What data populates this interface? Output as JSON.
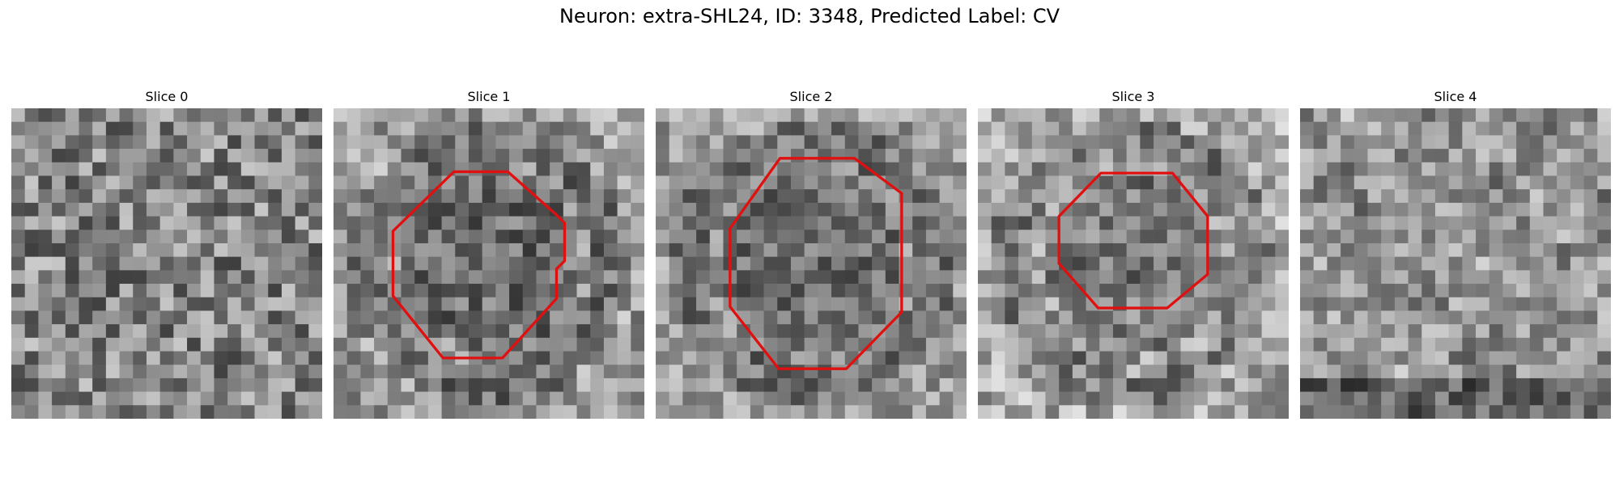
{
  "figure": {
    "title": "Neuron: extra-SHL24, ID: 3348, Predicted Label: CV"
  },
  "colors": {
    "contour": "#e01010",
    "background": "#ffffff"
  },
  "panels": [
    {
      "title": "Slice 0",
      "pattern": "noise",
      "seed": 11,
      "brightness": 0.52,
      "contrast": 0.55,
      "contour": null
    },
    {
      "title": "Slice 1",
      "pattern": "ring-dark",
      "seed": 23,
      "brightness": 0.55,
      "contrast": 0.45,
      "contour": [
        [
          4.4,
          9.1
        ],
        [
          8.9,
          4.7
        ],
        [
          12.9,
          4.7
        ],
        [
          16.5,
          7.9
        ],
        [
          17.1,
          8.5
        ],
        [
          17.1,
          11.3
        ],
        [
          16.5,
          11.9
        ],
        [
          16.5,
          14.1
        ],
        [
          12.5,
          18.5
        ],
        [
          8.1,
          18.5
        ],
        [
          4.4,
          13.9
        ]
      ]
    },
    {
      "title": "Slice 2",
      "pattern": "ring-dark",
      "seed": 37,
      "brightness": 0.55,
      "contrast": 0.4,
      "contour": [
        [
          5.5,
          8.9
        ],
        [
          9.2,
          3.7
        ],
        [
          14.7,
          3.7
        ],
        [
          18.2,
          6.3
        ],
        [
          18.2,
          15.1
        ],
        [
          14.1,
          19.3
        ],
        [
          9.1,
          19.3
        ],
        [
          5.5,
          14.7
        ]
      ]
    },
    {
      "title": "Slice 3",
      "pattern": "ring-dark",
      "seed": 41,
      "brightness": 0.6,
      "contrast": 0.45,
      "contour": [
        [
          6.0,
          8.0
        ],
        [
          9.1,
          4.8
        ],
        [
          14.4,
          4.8
        ],
        [
          17.0,
          8.0
        ],
        [
          17.0,
          12.3
        ],
        [
          14.0,
          14.8
        ],
        [
          8.9,
          14.8
        ],
        [
          6.0,
          11.5
        ]
      ]
    },
    {
      "title": "Slice 4",
      "pattern": "soft",
      "seed": 53,
      "brightness": 0.58,
      "contrast": 0.42,
      "contour": null
    }
  ]
}
